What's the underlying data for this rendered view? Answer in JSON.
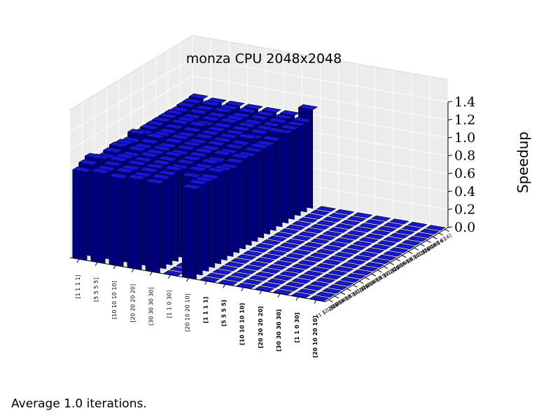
{
  "footer_note": "Average 1.0 iterations.",
  "chart_data": {
    "type": "bar3d",
    "title": "monza CPU 2048x2048",
    "zlabel": "Speedup",
    "zlim": [
      0,
      1.4
    ],
    "zticks": [
      "0.0",
      "0.2",
      "0.4",
      "0.6",
      "0.8",
      "1.0",
      "1.2",
      "1.4"
    ],
    "bar_color": "#0000cc",
    "pane_color": "#ececec",
    "grid": true,
    "x_categories": [
      "[1 1 1 1]",
      "[5 5 5 5]",
      "[10 10 10 10]",
      "[20 20 20 20]",
      "[30 30 30 30]",
      "[1 1 0 30]",
      "[20 10 20 10]",
      "[1 1 1 1]",
      "[5 5 5 5]",
      "[10 10 10 10]",
      "[20 20 20 20]",
      "[30 30 30 30]",
      "[1 1 0 30]",
      "[20 10 20 10]"
    ],
    "x_bold": [
      false,
      false,
      false,
      false,
      false,
      false,
      false,
      true,
      true,
      true,
      true,
      true,
      true,
      true
    ],
    "y_categories": [
      "[1 1 1 1]",
      "[2 2 2 2]",
      "[4 4 4 4]",
      "[8 8 8 8]",
      "[16 16 16 16]",
      "[1 1 1 1]",
      "[2 2 2 2]",
      "[4 4 4 4]",
      "[8 8 8 8]",
      "[16 16 16 16]",
      "[1 1 1 1]",
      "[2 2 2 2]",
      "[4 4 4 4]",
      "[8 8 8 8]",
      "[16 16 16 16]",
      "[1 1 1 1]",
      "[2 2 2 2]",
      "[4 4 4 4]",
      "[8 8 8 8]",
      "[16 16 16 16]"
    ],
    "values": [
      [
        0.98,
        1.02,
        1.05,
        1.0,
        0.97,
        0.99,
        1.01,
        1.0,
        0.98,
        1.03,
        0.99,
        1.0,
        1.0,
        1.0,
        1.0,
        1.0,
        0.99,
        1.0,
        1.0,
        1.01
      ],
      [
        1.0,
        0.99,
        1.0,
        1.01,
        1.0,
        0.98,
        1.0,
        0.99,
        1.0,
        1.02,
        1.0,
        0.99,
        1.0,
        1.01,
        1.0,
        0.99,
        1.0,
        1.0,
        1.01,
        1.0
      ],
      [
        0.98,
        1.0,
        0.99,
        1.0,
        1.0,
        1.01,
        1.0,
        1.0,
        0.99,
        1.0,
        1.0,
        0.99,
        1.0,
        1.02,
        0.99,
        1.0,
        1.0,
        1.01,
        1.0,
        1.0
      ],
      [
        1.0,
        0.99,
        1.0,
        1.0,
        1.0,
        1.0,
        1.01,
        0.99,
        1.0,
        1.0,
        0.99,
        1.0,
        1.0,
        1.0,
        1.0,
        1.01,
        1.0,
        0.99,
        1.0,
        1.0
      ],
      [
        0.99,
        1.0,
        1.0,
        1.01,
        0.99,
        1.0,
        1.0,
        1.0,
        1.0,
        0.99,
        1.0,
        1.0,
        1.0,
        1.0,
        1.0,
        1.0,
        0.99,
        1.0,
        1.0,
        1.0
      ],
      [
        0.0,
        0.0,
        0.0,
        0.97,
        1.0,
        0.99,
        1.0,
        0.98,
        1.01,
        0.99,
        1.0,
        1.0,
        1.03,
        0.99,
        1.0,
        1.0,
        1.0,
        1.0,
        1.0,
        1.0
      ],
      [
        1.0,
        1.01,
        1.0,
        0.99,
        1.02,
        1.0,
        0.98,
        1.0,
        1.01,
        0.99,
        1.0,
        1.0,
        0.99,
        1.0,
        1.05,
        1.0,
        1.0,
        1.0,
        1.0,
        1.1
      ],
      [
        0,
        0,
        0,
        0,
        0,
        0,
        0,
        0,
        0,
        0,
        0,
        0,
        0,
        0,
        0,
        0,
        0,
        0,
        0,
        0
      ],
      [
        0,
        0,
        0,
        0,
        0,
        0,
        0,
        0,
        0,
        0,
        0,
        0,
        0,
        0,
        0,
        0,
        0,
        0,
        0,
        0
      ],
      [
        0,
        0,
        0,
        0,
        0,
        0,
        0,
        0,
        0,
        0,
        0,
        0,
        0,
        0,
        0,
        0,
        0,
        0,
        0,
        0
      ],
      [
        0,
        0,
        0,
        0,
        0,
        0,
        0,
        0,
        0,
        0,
        0,
        0,
        0,
        0,
        0,
        0,
        0,
        0,
        0,
        0
      ],
      [
        0,
        0,
        0,
        0,
        0,
        0,
        0,
        0,
        0,
        0,
        0,
        0,
        0,
        0,
        0,
        0,
        0,
        0,
        0,
        0
      ],
      [
        0,
        0,
        0,
        0,
        0,
        0,
        0,
        0,
        0,
        0,
        0,
        0,
        0,
        0,
        0,
        0,
        0,
        0,
        0,
        0
      ],
      [
        0,
        0,
        0,
        0,
        0,
        0,
        0,
        0,
        0,
        0,
        0,
        0,
        0,
        0,
        0,
        0,
        0,
        0,
        0,
        0
      ]
    ]
  }
}
